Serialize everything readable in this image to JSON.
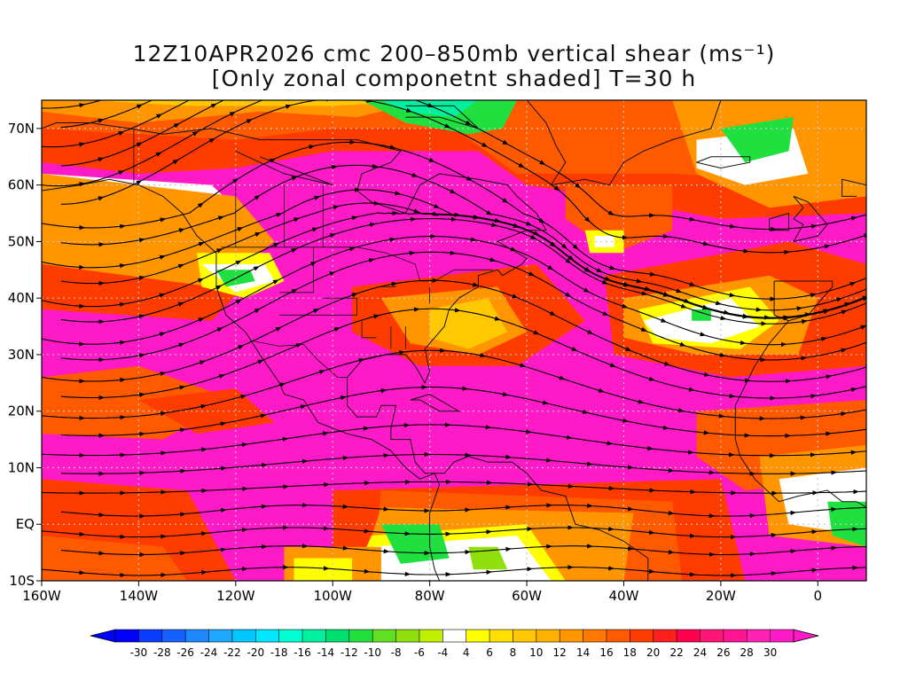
{
  "title": {
    "line1": "12Z10APR2026 cmc 200–850mb vertical shear (ms⁻¹)",
    "line2": "[Only zonal componetnt shaded] T=30 h"
  },
  "map": {
    "lon_range": [
      -160,
      10
    ],
    "lat_range": [
      -10,
      75
    ],
    "lon_ticks": [
      {
        "lon": -160,
        "label": "160W"
      },
      {
        "lon": -140,
        "label": "140W"
      },
      {
        "lon": -120,
        "label": "120W"
      },
      {
        "lon": -100,
        "label": "100W"
      },
      {
        "lon": -80,
        "label": "80W"
      },
      {
        "lon": -60,
        "label": "60W"
      },
      {
        "lon": -40,
        "label": "40W"
      },
      {
        "lon": -20,
        "label": "20W"
      },
      {
        "lon": 0,
        "label": "0"
      }
    ],
    "lat_ticks": [
      {
        "lat": 70,
        "label": "70N"
      },
      {
        "lat": 60,
        "label": "60N"
      },
      {
        "lat": 50,
        "label": "50N"
      },
      {
        "lat": 40,
        "label": "40N"
      },
      {
        "lat": 30,
        "label": "30N"
      },
      {
        "lat": 20,
        "label": "20N"
      },
      {
        "lat": 10,
        "label": "10N"
      },
      {
        "lat": 0,
        "label": "EQ"
      },
      {
        "lat": -10,
        "label": "10S"
      }
    ],
    "grid": true
  },
  "colorbar": {
    "levels": [
      "-30",
      "-28",
      "-26",
      "-24",
      "-22",
      "-20",
      "-18",
      "-16",
      "-14",
      "-12",
      "-10",
      "-8",
      "-6",
      "-4",
      "4",
      "6",
      "8",
      "10",
      "12",
      "14",
      "16",
      "18",
      "20",
      "22",
      "24",
      "26",
      "28",
      "30"
    ],
    "colors": [
      "#0000ff",
      "#0a3cff",
      "#1660ff",
      "#1e88ff",
      "#1fa8ff",
      "#00c8ff",
      "#00e6ff",
      "#00ffd0",
      "#00f0a0",
      "#00e070",
      "#20e040",
      "#60e020",
      "#90e010",
      "#c0f000",
      "#ffffff",
      "#ffff00",
      "#ffe000",
      "#ffc800",
      "#ffb000",
      "#ff9600",
      "#ff7800",
      "#ff5a00",
      "#ff3c00",
      "#ff1e1e",
      "#ff0050",
      "#ff1478",
      "#ff1493",
      "#ff20b4",
      "#ff1ac8"
    ]
  },
  "chart_data": {
    "type": "heatmap",
    "variable": "200-850mb vertical shear, zonal component shaded",
    "units": "ms-1",
    "valid": "12Z10APR2026",
    "forecast_hour": 30,
    "model": "cmc",
    "color_levels": [
      -30,
      -28,
      -26,
      -24,
      -22,
      -20,
      -18,
      -16,
      -14,
      -12,
      -10,
      -8,
      -6,
      -4,
      4,
      6,
      8,
      10,
      12,
      14,
      16,
      18,
      20,
      22,
      24,
      26,
      28,
      30
    ],
    "xlim": [
      -160,
      10
    ],
    "ylim": [
      -10,
      75
    ]
  }
}
